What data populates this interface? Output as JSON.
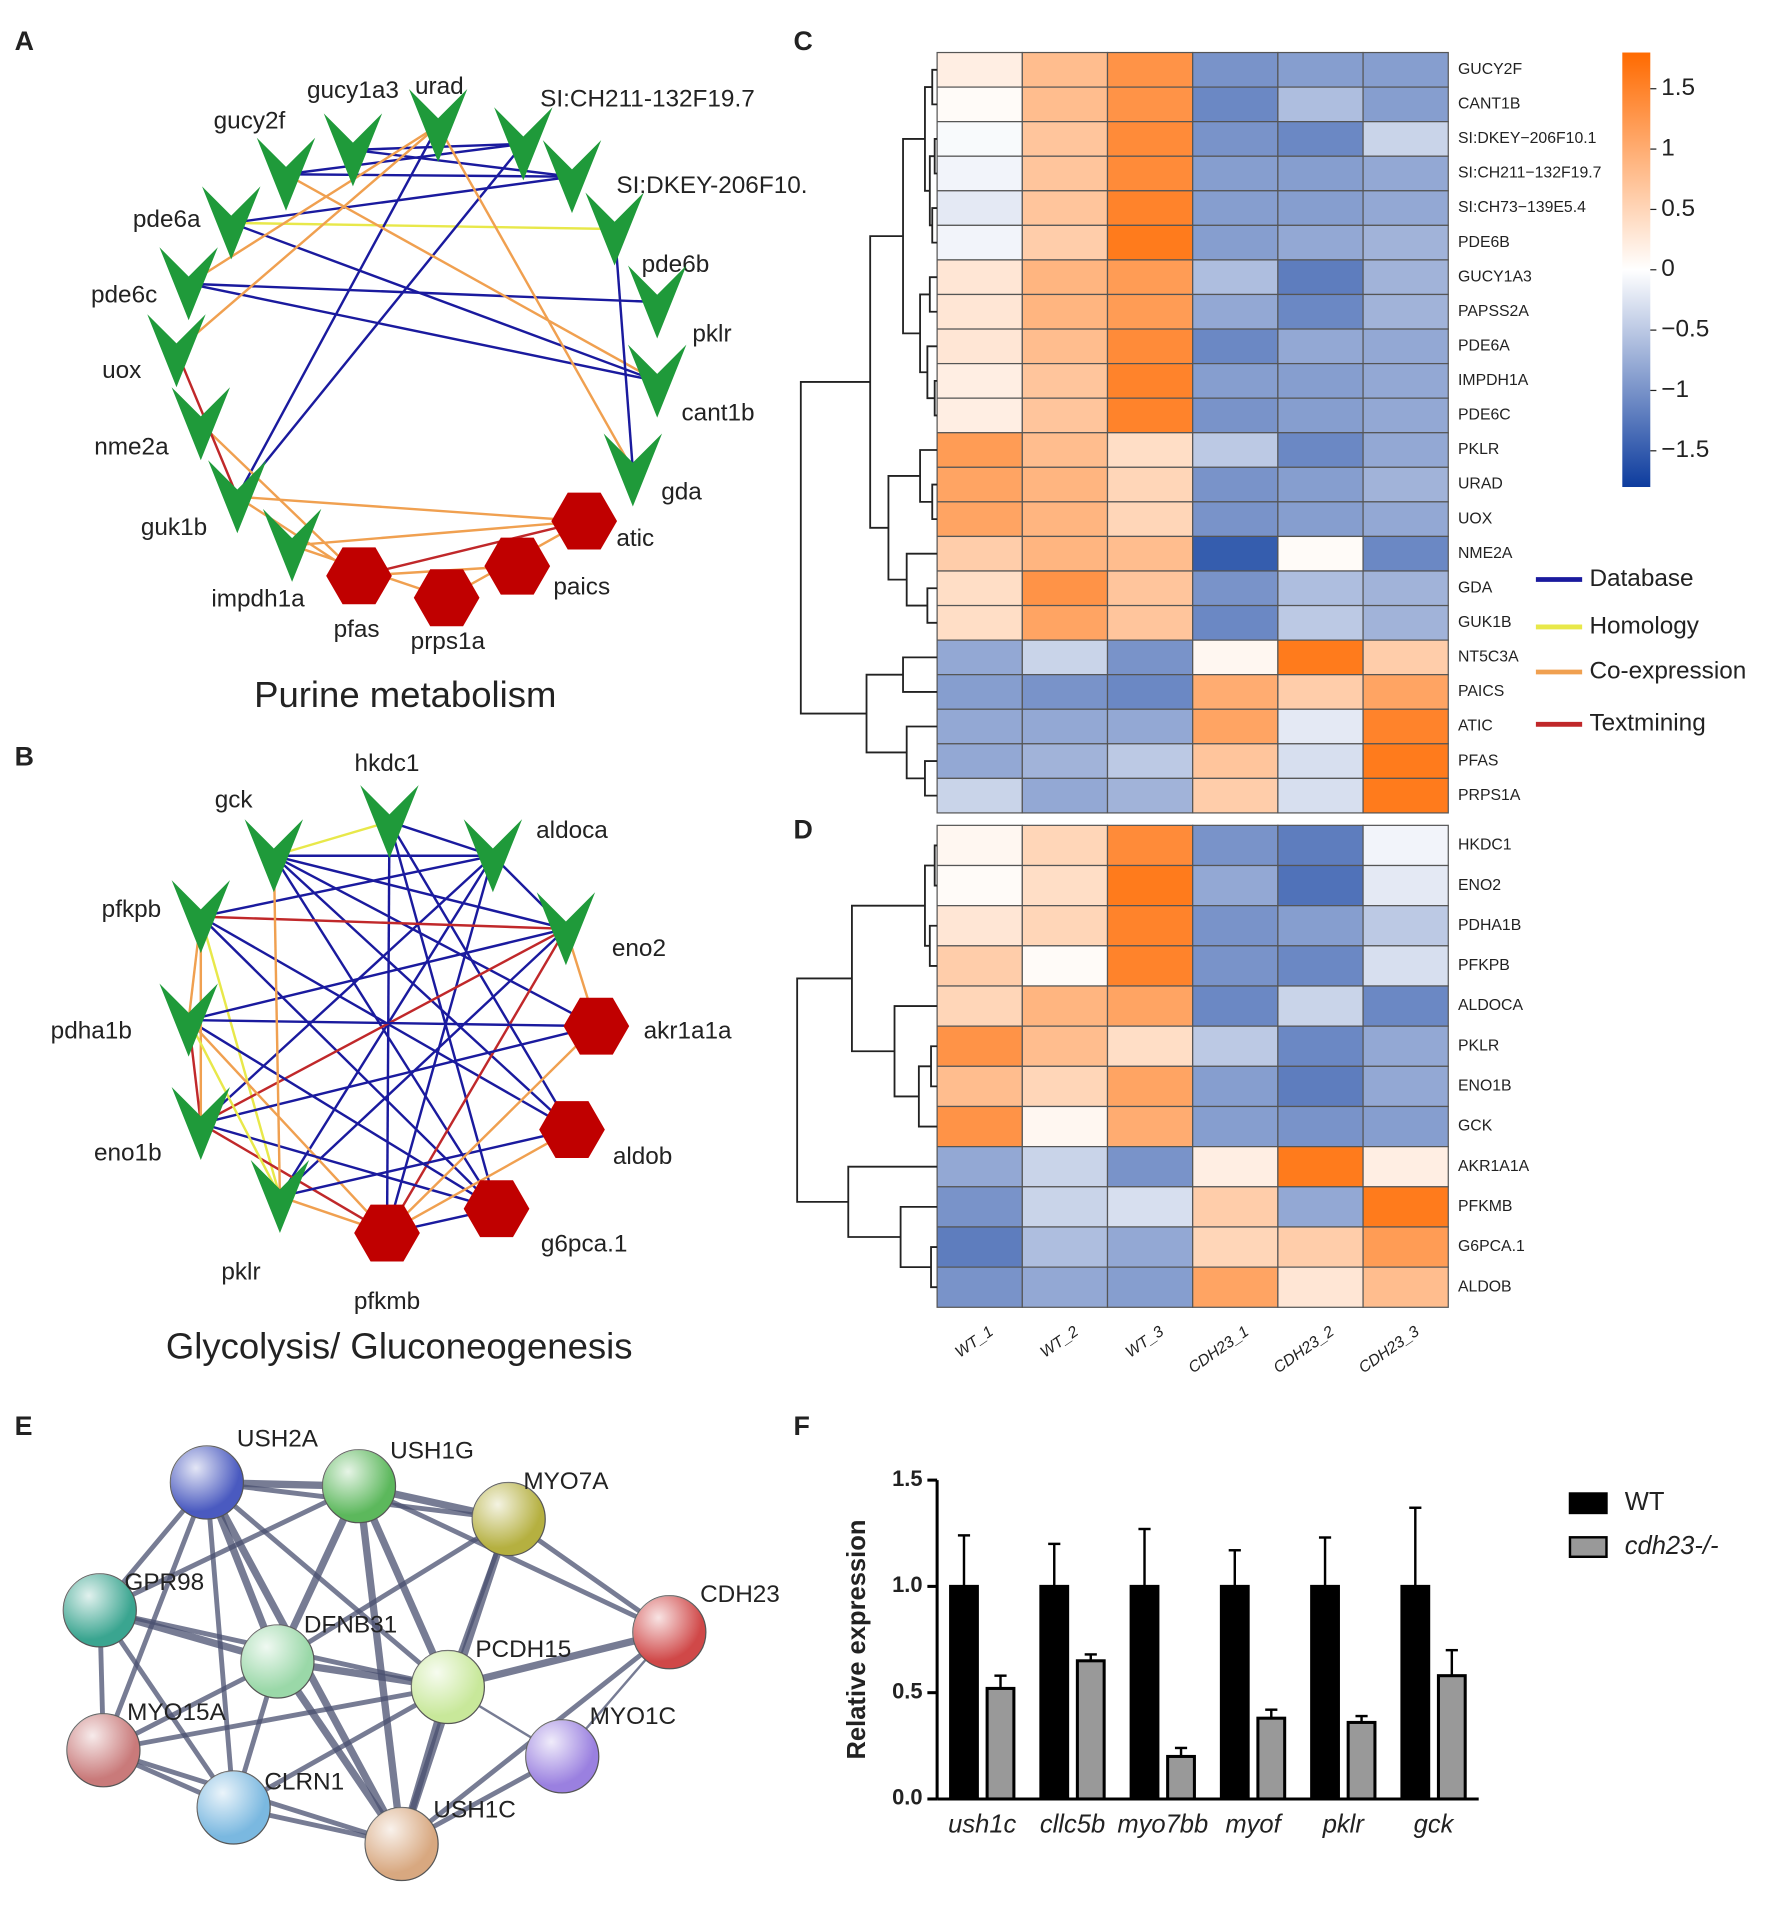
{
  "labels": [
    "A",
    "B",
    "C",
    "D",
    "E",
    "F"
  ],
  "edge_legend": [
    {
      "name": "Database",
      "color": "#1a1a9e"
    },
    {
      "name": "Homology",
      "color": "#e8e84a"
    },
    {
      "name": "Co-expression",
      "color": "#f0a050"
    },
    {
      "name": "Textmining",
      "color": "#c0282a"
    }
  ],
  "network_a": {
    "title": "Purine metabolism",
    "nodes": [
      {
        "label": "gucy2f",
        "shape": "arrow"
      },
      {
        "label": "gucy1a3",
        "shape": "arrow"
      },
      {
        "label": "urad",
        "shape": "arrow"
      },
      {
        "label": "SI:CH211-132F19.7",
        "shape": "arrow"
      },
      {
        "label": "SI:DKEY-206F10.",
        "shape": "arrow"
      },
      {
        "label": "pde6b",
        "shape": "arrow"
      },
      {
        "label": "pklr",
        "shape": "arrow"
      },
      {
        "label": "cant1b",
        "shape": "arrow"
      },
      {
        "label": "gda",
        "shape": "arrow"
      },
      {
        "label": "atic",
        "shape": "hexagon"
      },
      {
        "label": "paics",
        "shape": "hexagon"
      },
      {
        "label": "prps1a",
        "shape": "hexagon"
      },
      {
        "label": "pfas",
        "shape": "hexagon"
      },
      {
        "label": "impdh1a",
        "shape": "arrow"
      },
      {
        "label": "guk1b",
        "shape": "arrow"
      },
      {
        "label": "nme2a",
        "shape": "arrow"
      },
      {
        "label": "uox",
        "shape": "arrow"
      },
      {
        "label": "pde6c",
        "shape": "arrow"
      },
      {
        "label": "pde6a",
        "shape": "arrow"
      }
    ],
    "edges": [
      [
        0,
        3,
        0
      ],
      [
        0,
        4,
        0
      ],
      [
        1,
        3,
        0
      ],
      [
        1,
        4,
        0
      ],
      [
        18,
        4,
        0
      ],
      [
        18,
        5,
        1
      ],
      [
        17,
        6,
        0
      ],
      [
        17,
        7,
        0
      ],
      [
        18,
        7,
        0
      ],
      [
        14,
        3,
        0
      ],
      [
        14,
        2,
        0
      ],
      [
        16,
        2,
        2
      ],
      [
        2,
        8,
        2
      ],
      [
        13,
        9,
        2
      ],
      [
        14,
        9,
        2
      ],
      [
        15,
        12,
        2
      ],
      [
        16,
        14,
        3
      ],
      [
        12,
        9,
        3
      ],
      [
        12,
        10,
        2
      ],
      [
        11,
        9,
        2
      ],
      [
        13,
        11,
        2
      ],
      [
        14,
        12,
        2
      ],
      [
        0,
        7,
        2
      ],
      [
        5,
        8,
        0
      ],
      [
        17,
        2,
        2
      ]
    ]
  },
  "network_b": {
    "title": "Glycolysis/ Gluconeogenesis",
    "nodes": [
      {
        "label": "hkdc1",
        "shape": "arrow"
      },
      {
        "label": "gck",
        "shape": "arrow"
      },
      {
        "label": "aldoca",
        "shape": "arrow"
      },
      {
        "label": "pfkpb",
        "shape": "arrow"
      },
      {
        "label": "eno2",
        "shape": "arrow"
      },
      {
        "label": "pdha1b",
        "shape": "arrow"
      },
      {
        "label": "akr1a1a",
        "shape": "hexagon"
      },
      {
        "label": "eno1b",
        "shape": "arrow"
      },
      {
        "label": "aldob",
        "shape": "hexagon"
      },
      {
        "label": "pklr",
        "shape": "arrow"
      },
      {
        "label": "g6pca.1",
        "shape": "hexagon"
      },
      {
        "label": "pfkmb",
        "shape": "hexagon"
      }
    ],
    "edges": [
      [
        1,
        0,
        1
      ],
      [
        1,
        2,
        0
      ],
      [
        1,
        4,
        0
      ],
      [
        1,
        6,
        0
      ],
      [
        1,
        8,
        0
      ],
      [
        1,
        10,
        0
      ],
      [
        0,
        2,
        0
      ],
      [
        0,
        8,
        0
      ],
      [
        0,
        10,
        0
      ],
      [
        0,
        11,
        0
      ],
      [
        2,
        3,
        0
      ],
      [
        2,
        4,
        0
      ],
      [
        2,
        9,
        0
      ],
      [
        2,
        7,
        0
      ],
      [
        2,
        11,
        0
      ],
      [
        3,
        4,
        3
      ],
      [
        3,
        8,
        0
      ],
      [
        3,
        10,
        0
      ],
      [
        3,
        5,
        2
      ],
      [
        3,
        9,
        1
      ],
      [
        4,
        5,
        0
      ],
      [
        4,
        6,
        2
      ],
      [
        4,
        7,
        3
      ],
      [
        4,
        11,
        3
      ],
      [
        4,
        9,
        0
      ],
      [
        5,
        7,
        3
      ],
      [
        5,
        11,
        2
      ],
      [
        5,
        10,
        0
      ],
      [
        5,
        6,
        0
      ],
      [
        7,
        6,
        0
      ],
      [
        7,
        11,
        3
      ],
      [
        7,
        10,
        0
      ],
      [
        9,
        11,
        2
      ],
      [
        9,
        8,
        0
      ],
      [
        6,
        11,
        2
      ],
      [
        8,
        11,
        2
      ],
      [
        10,
        11,
        0
      ],
      [
        3,
        7,
        2
      ],
      [
        1,
        9,
        2
      ],
      [
        5,
        9,
        1
      ]
    ]
  },
  "heatmap": {
    "columns": [
      "WT_1",
      "WT_2",
      "WT_3",
      "CDH23_1",
      "CDH23_2",
      "CDH23_3"
    ],
    "clim": [
      -1.8,
      1.8
    ],
    "cticks": [
      1.5,
      1,
      0.5,
      0,
      {
        "value": -0.5,
        "label": "−0.5"
      },
      {
        "value": -1,
        "label": "−1"
      },
      {
        "value": -1.5,
        "label": "−1.5"
      }
    ],
    "c": {
      "rows": [
        "GUCY2F",
        "CANT1B",
        "SI:DKEY−206F10.1",
        "SI:CH211−132F19.7",
        "SI:CH73−139E5.4",
        "PDE6B",
        "GUCY1A3",
        "PAPSS2A",
        "PDE6A",
        "IMPDH1A",
        "PDE6C",
        "PKLR",
        "URAD",
        "UOX",
        "NME2A",
        "GDA",
        "GUK1B",
        "NT5C3A",
        "PAICS",
        "ATIC",
        "PFAS",
        "PRPS1A"
      ],
      "values": [
        [
          0.2,
          0.8,
          1.3,
          -1,
          -0.9,
          -0.9
        ],
        [
          0.05,
          0.8,
          1.3,
          -1.1,
          -0.6,
          -0.9
        ],
        [
          -0.05,
          0.7,
          1.4,
          -1,
          -1.1,
          -0.4
        ],
        [
          -0.1,
          0.7,
          1.4,
          -0.9,
          -0.9,
          -0.8
        ],
        [
          -0.2,
          0.7,
          1.5,
          -0.9,
          -0.9,
          -0.8
        ],
        [
          -0.1,
          0.6,
          1.6,
          -0.9,
          -0.8,
          -0.7
        ],
        [
          0.3,
          0.9,
          1.2,
          -0.6,
          -1.2,
          -0.7
        ],
        [
          0.3,
          0.9,
          1.2,
          -0.8,
          -1.1,
          -0.7
        ],
        [
          0.3,
          0.8,
          1.4,
          -1.1,
          -0.8,
          -0.8
        ],
        [
          0.2,
          0.7,
          1.5,
          -0.9,
          -0.9,
          -0.8
        ],
        [
          0.2,
          0.7,
          1.5,
          -1,
          -0.9,
          -0.8
        ],
        [
          1.2,
          0.8,
          0.4,
          -0.5,
          -1.1,
          -0.8
        ],
        [
          1.1,
          0.9,
          0.5,
          -1,
          -0.9,
          -0.7
        ],
        [
          1.1,
          0.9,
          0.5,
          -1,
          -0.9,
          -0.8
        ],
        [
          0.6,
          0.9,
          0.8,
          -1.5,
          0.05,
          -1.1
        ],
        [
          0.4,
          1.3,
          0.7,
          -1,
          -0.6,
          -0.7
        ],
        [
          0.4,
          1.1,
          0.7,
          -1.1,
          -0.5,
          -0.7
        ],
        [
          -0.8,
          -0.4,
          -1,
          0.1,
          1.6,
          0.6
        ],
        [
          -0.9,
          -1,
          -1.1,
          1,
          0.6,
          1.1
        ],
        [
          -0.8,
          -0.8,
          -0.8,
          1.1,
          -0.2,
          1.5
        ],
        [
          -0.8,
          -0.7,
          -0.5,
          0.7,
          -0.3,
          1.6
        ],
        [
          -0.4,
          -0.8,
          -0.7,
          0.6,
          -0.3,
          1.6
        ]
      ]
    },
    "d": {
      "rows": [
        "HKDC1",
        "ENO2",
        "PDHA1B",
        "PFKPB",
        "ALDOCA",
        "PKLR",
        "ENO1B",
        "GCK",
        "AKR1A1A",
        "PFKMB",
        "G6PCA.1",
        "ALDOB"
      ],
      "values": [
        [
          0.1,
          0.5,
          1.4,
          -1,
          -1.2,
          -0.1
        ],
        [
          0.05,
          0.4,
          1.6,
          -0.8,
          -1.3,
          -0.2
        ],
        [
          0.3,
          0.5,
          1.5,
          -1,
          -0.9,
          -0.5
        ],
        [
          0.6,
          0.05,
          1.5,
          -1,
          -1.1,
          -0.3
        ],
        [
          0.5,
          0.9,
          1.1,
          -1.1,
          -0.4,
          -1.1
        ],
        [
          1.3,
          0.8,
          0.4,
          -0.5,
          -1.1,
          -0.8
        ],
        [
          0.8,
          0.5,
          1.1,
          -0.9,
          -1.2,
          -0.8
        ],
        [
          1.3,
          0.1,
          1,
          -0.9,
          -1,
          -0.9
        ],
        [
          -0.8,
          -0.4,
          -1,
          0.2,
          1.6,
          0.2
        ],
        [
          -1,
          -0.4,
          -0.3,
          0.6,
          -0.8,
          1.6
        ],
        [
          -1.2,
          -0.6,
          -0.8,
          0.5,
          0.6,
          1.2
        ],
        [
          -1,
          -0.8,
          -0.9,
          1.1,
          0.3,
          0.8
        ]
      ]
    }
  },
  "string_network": {
    "nodes": [
      {
        "label": "USH2A",
        "color": "#4a5ac0"
      },
      {
        "label": "USH1G",
        "color": "#5cb85c"
      },
      {
        "label": "MYO7A",
        "color": "#b5b040"
      },
      {
        "label": "GPR98",
        "color": "#3aa590"
      },
      {
        "label": "DFNB31",
        "color": "#9ad8a8"
      },
      {
        "label": "PCDH15",
        "color": "#c8e89a"
      },
      {
        "label": "CDH23",
        "color": "#d04848"
      },
      {
        "label": "MYO15A",
        "color": "#c97a7a"
      },
      {
        "label": "MYO1C",
        "color": "#9a80e0"
      },
      {
        "label": "CLRN1",
        "color": "#7ab8e0"
      },
      {
        "label": "USH1C",
        "color": "#d8a880"
      }
    ],
    "edges": [
      [
        0,
        1,
        3
      ],
      [
        0,
        2,
        2
      ],
      [
        0,
        3,
        2
      ],
      [
        0,
        4,
        3
      ],
      [
        0,
        5,
        2
      ],
      [
        0,
        7,
        2
      ],
      [
        0,
        9,
        2
      ],
      [
        0,
        10,
        3
      ],
      [
        1,
        2,
        3
      ],
      [
        1,
        3,
        2
      ],
      [
        1,
        4,
        3
      ],
      [
        1,
        5,
        3
      ],
      [
        1,
        6,
        2
      ],
      [
        1,
        10,
        3
      ],
      [
        2,
        5,
        2
      ],
      [
        2,
        6,
        2
      ],
      [
        2,
        10,
        3
      ],
      [
        2,
        4,
        2
      ],
      [
        3,
        4,
        3
      ],
      [
        3,
        7,
        2
      ],
      [
        3,
        9,
        2
      ],
      [
        3,
        5,
        2
      ],
      [
        4,
        5,
        3
      ],
      [
        4,
        7,
        2
      ],
      [
        4,
        9,
        2
      ],
      [
        4,
        10,
        3
      ],
      [
        5,
        6,
        3
      ],
      [
        5,
        8,
        1
      ],
      [
        5,
        10,
        3
      ],
      [
        5,
        9,
        2
      ],
      [
        6,
        8,
        1
      ],
      [
        6,
        10,
        2
      ],
      [
        7,
        9,
        2
      ],
      [
        7,
        10,
        2
      ],
      [
        8,
        10,
        2
      ],
      [
        9,
        10,
        2
      ],
      [
        5,
        7,
        2
      ]
    ]
  },
  "chart_data": {
    "type": "bar",
    "y_label": "Relative expression",
    "categories": [
      "ush1c",
      "cllc5b",
      "myo7bb",
      "myof",
      "pklr",
      "gck"
    ],
    "series": [
      {
        "name": "WT",
        "color": "#000000",
        "values": [
          1,
          1,
          1,
          1,
          1,
          1
        ],
        "errors": [
          0.24,
          0.2,
          0.27,
          0.17,
          0.23,
          0.37
        ]
      },
      {
        "name": "cdh23-/-",
        "color": "#999999",
        "values": [
          0.52,
          0.65,
          0.2,
          0.38,
          0.36,
          0.58
        ],
        "errors": [
          0.06,
          0.03,
          0.04,
          0.04,
          0.03,
          0.12
        ]
      }
    ],
    "ylim": [
      0,
      1.5
    ],
    "yticks": [
      {
        "value": 0,
        "label": "0.0"
      },
      {
        "value": 0.5,
        "label": "0.5"
      },
      {
        "value": 1,
        "label": "1.0"
      },
      {
        "value": 1.5,
        "label": "1.5"
      }
    ]
  }
}
